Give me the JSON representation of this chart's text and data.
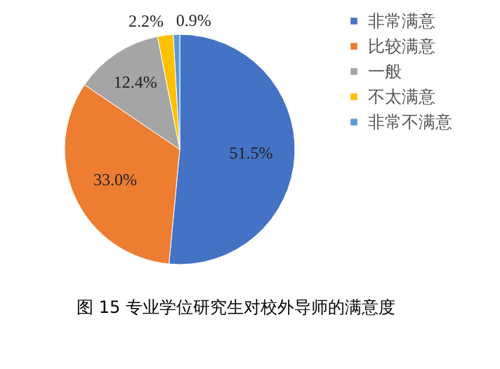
{
  "chart_data": {
    "type": "pie",
    "title": "图 15    专业学位研究生对校外导师的满意度",
    "categories": [
      "非常满意",
      "比较满意",
      "一般",
      "不太满意",
      "非常不满意"
    ],
    "values": [
      51.5,
      33.0,
      12.4,
      2.2,
      0.9
    ],
    "colors": [
      "#4472c4",
      "#ed7d31",
      "#a5a5a5",
      "#ffc000",
      "#5b9bd5"
    ],
    "value_labels": [
      "51.5%",
      "33.0%",
      "12.4%",
      "2.2%",
      "0.9%"
    ],
    "legend": "right"
  }
}
